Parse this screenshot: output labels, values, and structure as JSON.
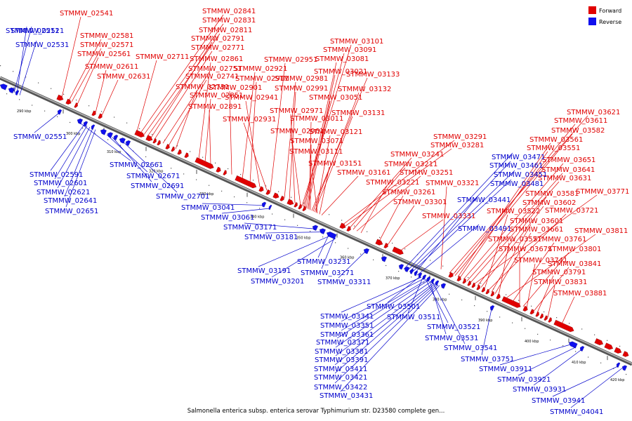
{
  "caption": "Salmonella enterica subsp. enterica serovar Typhimurium str. D23580 complete gen...",
  "legend": [
    {
      "label": "Forward",
      "color": "#e00000"
    },
    {
      "label": "Reverse",
      "color": "#1010ee"
    }
  ],
  "ticks": [
    "290 kbp",
    "300 kbp",
    "310 kbp",
    "320 kbp",
    "330 kbp",
    "340 kbp",
    "350 kbp",
    "360 kbp",
    "370 kbp",
    "380 kbp",
    "390 kbp",
    "400 kbp",
    "410 kbp",
    "420 kbp"
  ],
  "forward_genes": [
    "STMMW_02541",
    "STMMW_02581",
    "STMMW_02571",
    "STMMW_02561",
    "STMMW_02611",
    "STMMW_02631",
    "STMMW_02841",
    "STMMW_02831",
    "STMMW_02811",
    "STMMW_02791",
    "STMMW_02771",
    "STMMW_02711",
    "STMMW_02751",
    "STMMW_02741",
    "STMMW_02731",
    "STMMW_02861",
    "STMMW_02851",
    "STMMW_02891",
    "STMMW_02921",
    "STMMW_02911",
    "STMMW_02901",
    "STMMW_02941",
    "STMMW_02931",
    "STMMW_02951",
    "STMMW_02991",
    "STMMW_02981",
    "STMMW_02971",
    "STMMW_02961",
    "STMMW_03101",
    "STMMW_03091",
    "STMMW_03081",
    "STMMW_03021",
    "STMMW_03051",
    "STMMW_03011",
    "STMMW_03071",
    "STMMW_03133",
    "STMMW_03132",
    "STMMW_03131",
    "STMMW_03121",
    "STMMW_03111",
    "STMMW_03151",
    "STMMW_03161",
    "STMMW_03291",
    "STMMW_03281",
    "STMMW_03241",
    "STMMW_03211",
    "STMMW_03251",
    "STMMW_03221",
    "STMMW_03261",
    "STMMW_03301",
    "STMMW_03331",
    "STMMW_03321",
    "STMMW_03621",
    "STMMW_03611",
    "STMMW_03582",
    "STMMW_03561",
    "STMMW_03551",
    "STMMW_03651",
    "STMMW_03641",
    "STMMW_03631",
    "STMMW_03771",
    "STMMW_03581",
    "STMMW_03602",
    "STMMW_03522",
    "STMMW_03721",
    "STMMW_03601",
    "STMMW_03661",
    "STMMW_03571",
    "STMMW_03811",
    "STMMW_03761",
    "STMMW_03671",
    "STMMW_03801",
    "STMMW_03741",
    "STMMW_03841",
    "STMMW_03791",
    "STMMW_03831",
    "STMMW_03881"
  ],
  "reverse_genes": [
    "STMMW_02521",
    "STMMW_02511",
    "STMMW_02531",
    "STMMW_02551",
    "STMMW_02661",
    "STMMW_02591",
    "STMMW_02671",
    "STMMW_02601",
    "STMMW_02621",
    "STMMW_02691",
    "STMMW_02641",
    "STMMW_02651",
    "STMMW_02701",
    "STMMW_03041",
    "STMMW_03061",
    "STMMW_03171",
    "STMMW_03181",
    "STMMW_03231",
    "STMMW_03191",
    "STMMW_03271",
    "STMMW_03201",
    "STMMW_03311",
    "STMMW_03471",
    "STMMW_03461",
    "STMMW_03451",
    "STMMW_03481",
    "STMMW_03441",
    "STMMW_03491",
    "STMMW_03501",
    "STMMW_03341",
    "STMMW_03511",
    "STMMW_03351",
    "STMMW_03521",
    "STMMW_03361",
    "STMMW_03371",
    "STMMW_03531",
    "STMMW_03381",
    "STMMW_03541",
    "STMMW_03391",
    "STMMW_03751",
    "STMMW_03411",
    "STMMW_03421",
    "STMMW_03422",
    "STMMW_03431",
    "STMMW_03911",
    "STMMW_03921",
    "STMMW_03931",
    "STMMW_03941",
    "STMMW_04041"
  ]
}
